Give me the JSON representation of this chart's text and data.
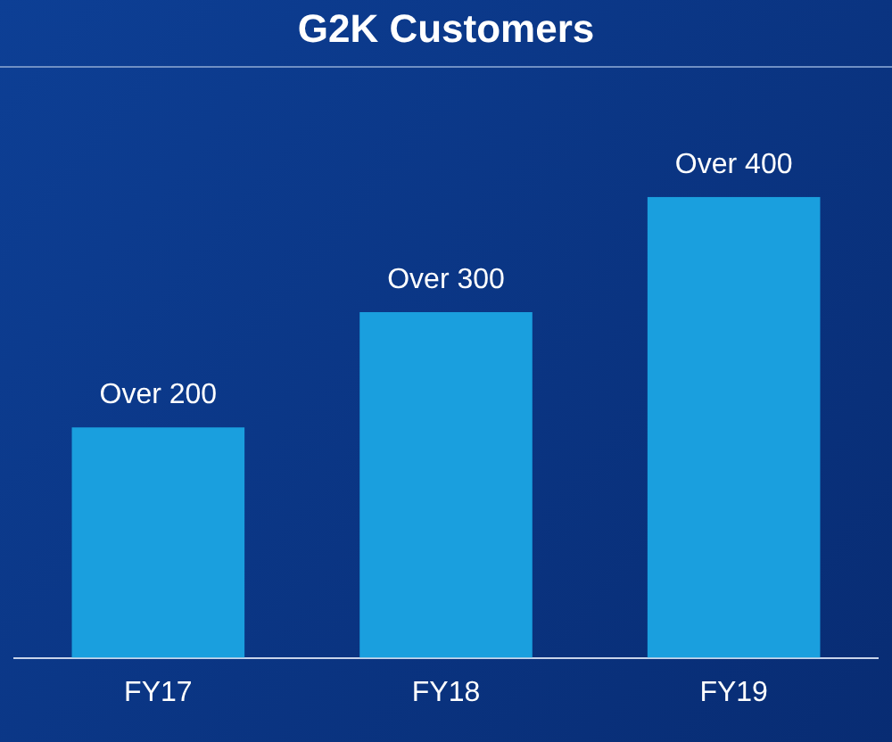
{
  "chart_data": {
    "type": "bar",
    "title": "G2K Customers",
    "categories": [
      "FY17",
      "FY18",
      "FY19"
    ],
    "tick_labels": "x",
    "series": [
      {
        "color": "#1a9fde",
        "values": [
          200,
          300,
          400
        ],
        "value_labels": [
          "Over 200",
          "Over 300",
          "Over 400"
        ]
      }
    ],
    "grid": false,
    "legend": false
  }
}
